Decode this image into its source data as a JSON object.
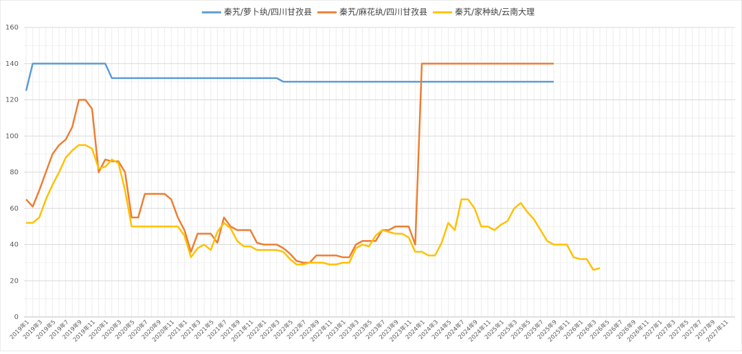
{
  "chart_data": {
    "type": "line",
    "categories": [
      "2019年1",
      null,
      "2019年3",
      null,
      "2019年5",
      null,
      "2019年7",
      null,
      "2019年9",
      null,
      "2019年11",
      null,
      "2020年1",
      null,
      "2020年3",
      null,
      "2020年5",
      null,
      "2020年7",
      null,
      "2020年9",
      null,
      "2020年11",
      null,
      "2021年1",
      null,
      "2021年3",
      null,
      "2021年5",
      null,
      "2021年7",
      null,
      "2021年9",
      null,
      "2021年11",
      null,
      "2022年1",
      null,
      "2022年3",
      null,
      "2022年5",
      null,
      "2022年7",
      null,
      "2022年9",
      null,
      "2022年11",
      null,
      "2023年1",
      null,
      "2023年3",
      null,
      "2023年5",
      null,
      "2023年7",
      null,
      "2023年9",
      null,
      "2023年11",
      null,
      "2024年1",
      null,
      "2024年3",
      null,
      "2024年5",
      null,
      "2024年7",
      null,
      "2024年9",
      null,
      "2024年11",
      null,
      "2025年1",
      null,
      "2025年3",
      null,
      "2025年5",
      null,
      "2025年7",
      null,
      "2025年9",
      null,
      "2025年11",
      null,
      "2026年1",
      null,
      "2026年3",
      null,
      "2026年5",
      null,
      "2026年7",
      null,
      "2026年9",
      null,
      "2026年11",
      null,
      "2027年1",
      null,
      "2027年3",
      null,
      "2027年5",
      null,
      "2027年7",
      null,
      "2027年9",
      null,
      "2027年11",
      null
    ],
    "series": [
      {
        "name": "秦艽/萝卜纨/四川甘孜县",
        "color": "#5b9bd5",
        "values": [
          125,
          140,
          140,
          140,
          140,
          140,
          140,
          140,
          140,
          140,
          140,
          140,
          140,
          132,
          132,
          132,
          132,
          132,
          132,
          132,
          132,
          132,
          132,
          132,
          132,
          132,
          132,
          132,
          132,
          132,
          132,
          132,
          132,
          132,
          132,
          132,
          132,
          132,
          132,
          130,
          130,
          130,
          130,
          130,
          130,
          130,
          130,
          130,
          130,
          130,
          130,
          130,
          130,
          130,
          130,
          130,
          130,
          130,
          130,
          130,
          130,
          130,
          130,
          130,
          130,
          130,
          130,
          130,
          130,
          130,
          130,
          130,
          130,
          130,
          130,
          130,
          130,
          130,
          130,
          130,
          130,
          null,
          null,
          null,
          null,
          null,
          null,
          null,
          null,
          null,
          null,
          null,
          null,
          null,
          null,
          null,
          null,
          null,
          null,
          null,
          null,
          null,
          null,
          null,
          null,
          null,
          null,
          null
        ]
      },
      {
        "name": "秦艽/麻花纨/四川甘孜县",
        "color": "#ed7d31",
        "values": [
          65,
          61,
          70,
          80,
          90,
          95,
          98,
          105,
          120,
          120,
          115,
          80,
          87,
          86,
          86,
          80,
          55,
          55,
          68,
          68,
          68,
          68,
          65,
          55,
          48,
          36,
          46,
          46,
          46,
          41,
          55,
          50,
          48,
          48,
          48,
          41,
          40,
          40,
          40,
          38,
          35,
          31,
          30,
          30,
          34,
          34,
          34,
          34,
          33,
          33,
          40,
          42,
          42,
          42,
          48,
          48,
          50,
          50,
          50,
          40,
          140,
          140,
          140,
          140,
          140,
          140,
          140,
          140,
          140,
          140,
          140,
          140,
          140,
          140,
          140,
          140,
          140,
          140,
          140,
          140,
          140,
          null,
          null,
          null,
          null,
          null,
          null,
          null,
          null,
          null,
          null,
          null,
          null,
          null,
          null,
          null,
          null,
          null,
          null,
          null,
          null,
          null,
          null,
          null,
          null,
          null,
          null,
          null
        ]
      },
      {
        "name": "秦艽/家种纨/云南大理",
        "color": "#ffc000",
        "values": [
          52,
          52,
          55,
          65,
          73,
          80,
          88,
          92,
          95,
          95,
          93,
          82,
          83,
          87,
          85,
          70,
          50,
          50,
          50,
          50,
          50,
          50,
          50,
          50,
          45,
          33,
          38,
          40,
          37,
          47,
          52,
          49,
          42,
          39,
          39,
          37,
          37,
          37,
          37,
          36,
          32,
          29,
          29,
          30,
          30,
          30,
          29,
          29,
          30,
          30,
          38,
          40,
          39,
          45,
          48,
          47,
          46,
          46,
          44,
          36,
          36,
          34,
          34,
          41,
          52,
          48,
          65,
          65,
          60,
          50,
          50,
          48,
          51,
          53,
          60,
          63,
          58,
          54,
          48,
          42,
          40,
          40,
          40,
          33,
          32,
          32,
          26,
          27,
          null,
          null,
          null,
          null,
          null,
          null,
          null,
          null,
          null,
          null,
          null,
          null,
          null,
          null,
          null,
          null,
          null,
          null,
          null,
          null
        ]
      }
    ],
    "ylim": [
      0,
      160
    ],
    "yticks": [
      0,
      20,
      40,
      60,
      80,
      100,
      120,
      140,
      160
    ],
    "grid": true,
    "legend": "top"
  }
}
